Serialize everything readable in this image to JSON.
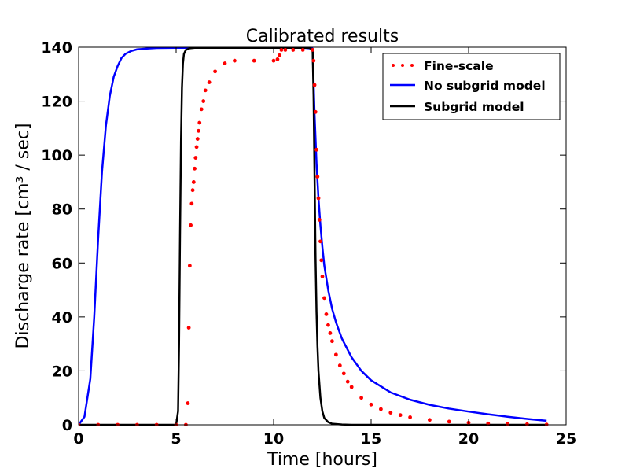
{
  "chart_data": {
    "type": "line",
    "title": "Calibrated results",
    "xlabel": "Time [hours]",
    "ylabel": "Discharge rate [cm³ / sec]",
    "xlim": [
      0,
      25
    ],
    "ylim": [
      0,
      140
    ],
    "xticks": [
      "0",
      "5",
      "10",
      "15",
      "20",
      "25"
    ],
    "yticks": [
      "0",
      "20",
      "40",
      "60",
      "80",
      "100",
      "120",
      "140"
    ],
    "grid": false,
    "legend_position": "top-right",
    "series": [
      {
        "name": "Fine-scale",
        "style": "dots",
        "color": "#ff0000",
        "x": [
          0,
          1,
          2,
          3,
          4,
          5,
          5.5,
          5.6,
          5.65,
          5.7,
          5.75,
          5.8,
          5.85,
          5.9,
          5.95,
          6.0,
          6.05,
          6.1,
          6.15,
          6.2,
          6.3,
          6.4,
          6.5,
          6.7,
          7.0,
          7.5,
          8.0,
          9.0,
          10.0,
          10.2,
          10.3,
          10.4,
          10.6,
          11.0,
          11.5,
          12.0,
          12.05,
          12.1,
          12.15,
          12.2,
          12.25,
          12.3,
          12.35,
          12.4,
          12.45,
          12.5,
          12.6,
          12.7,
          12.8,
          12.9,
          13.0,
          13.2,
          13.4,
          13.6,
          13.8,
          14.0,
          14.5,
          15.0,
          15.5,
          16.0,
          16.5,
          17.0,
          18.0,
          19.0,
          20.0,
          21.0,
          22.0,
          23.0,
          24.0
        ],
        "y": [
          0,
          0,
          0,
          0,
          0,
          0,
          0,
          8,
          36,
          59,
          74,
          82,
          87,
          90,
          95,
          99,
          103,
          106,
          109,
          112,
          117,
          120,
          124,
          127,
          131,
          134,
          135,
          135,
          135,
          135.5,
          137,
          139,
          139,
          139,
          139,
          139,
          135,
          126,
          116,
          102,
          92,
          84,
          76,
          68,
          61,
          55,
          47,
          41,
          37,
          34,
          31,
          26,
          22,
          19,
          16,
          14,
          10,
          7.5,
          5.8,
          4.5,
          3.6,
          2.8,
          1.8,
          1.2,
          0.8,
          0.5,
          0.3,
          0.2,
          0.1
        ]
      },
      {
        "name": "No subgrid model",
        "style": "line",
        "color": "#0000ff",
        "x": [
          0,
          0.3,
          0.6,
          0.8,
          1.0,
          1.2,
          1.4,
          1.6,
          1.8,
          2.0,
          2.2,
          2.4,
          2.7,
          3.0,
          3.5,
          4.0,
          5.0,
          8.0,
          10.0,
          11.5,
          12.0,
          12.1,
          12.2,
          12.3,
          12.4,
          12.5,
          12.6,
          12.8,
          13.0,
          13.2,
          13.5,
          14.0,
          14.5,
          15.0,
          16.0,
          17.0,
          18.0,
          19.0,
          20.0,
          21.0,
          22.0,
          23.0,
          24.0
        ],
        "y": [
          0,
          3,
          17,
          40,
          69,
          94,
          111,
          122,
          129,
          133,
          136,
          137.5,
          138.6,
          139.2,
          139.5,
          139.7,
          139.8,
          139.8,
          139.8,
          139.8,
          139.5,
          115,
          97,
          84,
          74,
          66,
          59,
          50,
          43,
          38,
          32,
          25,
          20,
          16.5,
          12,
          9.3,
          7.4,
          6.0,
          4.9,
          3.9,
          3.0,
          2.2,
          1.5
        ]
      },
      {
        "name": "Subgrid model",
        "style": "line",
        "color": "#000000",
        "x": [
          0,
          5.0,
          5.1,
          5.15,
          5.2,
          5.25,
          5.3,
          5.35,
          5.4,
          5.5,
          5.7,
          6.0,
          8.0,
          10.0,
          11.8,
          12.0,
          12.05,
          12.1,
          12.15,
          12.2,
          12.25,
          12.3,
          12.4,
          12.5,
          12.6,
          12.8,
          13.0,
          13.5,
          14.0,
          16.0,
          20.0,
          24.0
        ],
        "y": [
          0,
          0,
          5,
          30,
          70,
          105,
          125,
          134,
          137.5,
          139,
          139.6,
          139.8,
          139.8,
          139.8,
          139.8,
          139.2,
          122,
          92,
          62,
          42,
          29,
          20,
          10,
          5,
          2.5,
          1,
          0.4,
          0.1,
          0,
          0,
          0,
          0
        ]
      }
    ]
  }
}
